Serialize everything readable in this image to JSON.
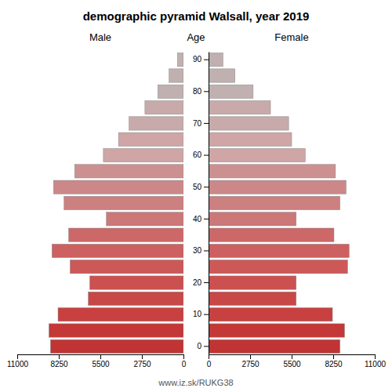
{
  "chart_data": {
    "type": "bar",
    "orientation": "horizontal",
    "title": "demographic pyramid Walsall, year 2019",
    "ylabel": "Age",
    "categories": [
      "0",
      null,
      "10",
      null,
      "20",
      null,
      "30",
      null,
      "40",
      null,
      "50",
      null,
      "60",
      null,
      "70",
      null,
      "80",
      null,
      "90"
    ],
    "colors": [
      "#c03434",
      "#c43838",
      "#c84040",
      "#c84848",
      "#cc5050",
      "#cc5858",
      "#cd6060",
      "#cd6868",
      "#cc7878",
      "#cc8080",
      "#cc8888",
      "#cc9090",
      "#cfa5a5",
      "#cfa5a5",
      "#c8aaaa",
      "#c8aaaa",
      "#c0b0b0",
      "#c0b0b0",
      "#c0b0b0"
    ],
    "series": [
      {
        "name": "Male",
        "values": [
          8800,
          8900,
          8300,
          6300,
          6200,
          7500,
          8700,
          7600,
          5100,
          7900,
          8600,
          7200,
          5300,
          4300,
          3600,
          2550,
          1700,
          950,
          400
        ]
      },
      {
        "name": "Female",
        "values": [
          8700,
          9000,
          8200,
          5800,
          5800,
          9200,
          9300,
          8300,
          5800,
          8700,
          9100,
          8400,
          6400,
          5500,
          5300,
          4100,
          2950,
          1750,
          950
        ]
      }
    ],
    "xlim": [
      0,
      11000
    ],
    "xticks": [
      0,
      2750,
      5500,
      8250,
      11000
    ],
    "grid": false,
    "annotations": [
      "www.iz.sk/RUKG38"
    ]
  }
}
